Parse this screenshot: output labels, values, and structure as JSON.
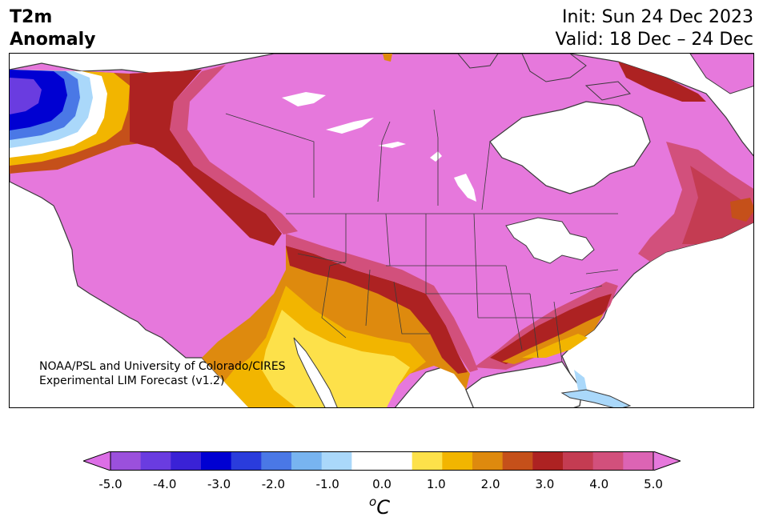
{
  "title": {
    "line1": "T2m",
    "line2": "Anomaly"
  },
  "dates": {
    "init": "Init: Sun 24 Dec 2023",
    "valid": "Valid: 18 Dec – 24 Dec"
  },
  "credit": {
    "line1": "NOAA/PSL and University of Colorado/CIRES",
    "line2": "Experimental LIM Forecast (v1.2)"
  },
  "colorbar": {
    "colors": [
      "#dc6ee6",
      "#9b50dc",
      "#6a3ce0",
      "#3a22d6",
      "#0000d2",
      "#2a3cdc",
      "#4a78e6",
      "#78b4f0",
      "#aad8fa",
      "#ffffff",
      "#ffffff",
      "#fde14a",
      "#f2b500",
      "#de8a0e",
      "#c5501a",
      "#ad2222",
      "#c43c52",
      "#d2507c",
      "#dc64b4",
      "#e678dc"
    ],
    "tick_labels": [
      "-5.0",
      "-4.0",
      "-3.0",
      "-2.0",
      "-1.0",
      "0.0",
      "1.0",
      "2.0",
      "3.0",
      "4.0",
      "5.0"
    ],
    "unit_base": "C",
    "unit_superscript": "o"
  }
}
